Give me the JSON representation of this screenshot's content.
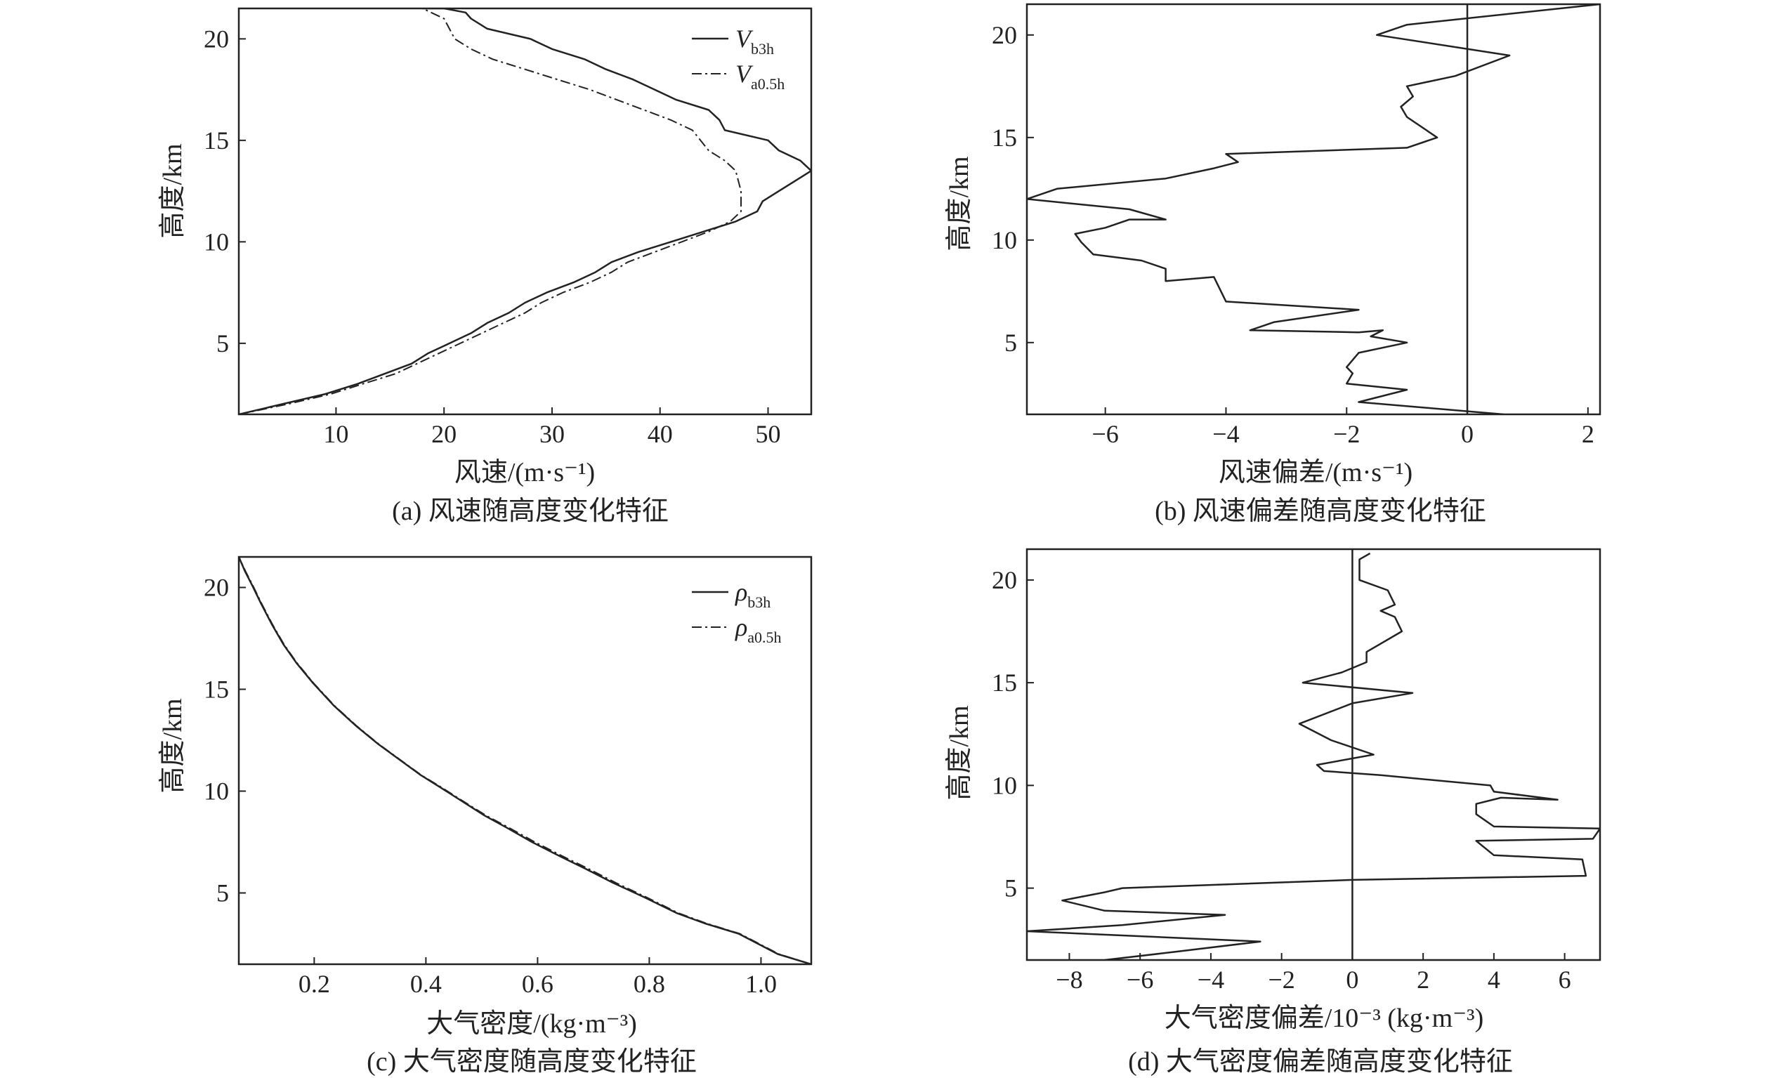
{
  "page": {
    "colors": {
      "ink": "#222222",
      "background": "#ffffff"
    }
  },
  "chart_data": [
    {
      "id": "a",
      "type": "line",
      "caption": "(a) 风速随高度变化特征",
      "xlabel": "风速/(m·s⁻¹)",
      "ylabel": "高度/km",
      "xlim": [
        1,
        54
      ],
      "ylim": [
        1.5,
        21.5
      ],
      "xticks": [
        10,
        20,
        30,
        40,
        50
      ],
      "yticks": [
        5,
        10,
        15,
        20
      ],
      "xtick_labels": [
        "10",
        "20",
        "30",
        "40",
        "50"
      ],
      "ytick_labels": [
        "5",
        "10",
        "15",
        "20"
      ],
      "grid": false,
      "legend": "top-right",
      "zero_line": false,
      "series": [
        {
          "name": "V",
          "sub": "b3h",
          "style": "solid",
          "x": [
            1.0,
            5.0,
            9.0,
            12.0,
            14.5,
            17.0,
            18.5,
            20.5,
            22.5,
            24.0,
            26.0,
            27.5,
            29.5,
            32.0,
            34.0,
            35.5,
            38.0,
            41.0,
            44.0,
            47.0,
            49.0,
            49.5,
            51.0,
            52.5,
            54.0,
            53.0,
            51.0,
            50.0,
            46.0,
            45.5,
            44.5,
            41.5,
            39.5,
            37.5,
            35.0,
            33.0,
            30.0,
            28.0,
            24.0,
            22.5,
            22.0,
            20.0,
            18.0
          ],
          "y": [
            1.5,
            2.0,
            2.5,
            3.0,
            3.5,
            4.0,
            4.5,
            5.0,
            5.5,
            6.0,
            6.5,
            7.0,
            7.5,
            8.0,
            8.5,
            9.0,
            9.5,
            10.0,
            10.5,
            11.0,
            11.5,
            12.0,
            12.5,
            13.0,
            13.5,
            14.0,
            14.5,
            15.0,
            15.5,
            16.0,
            16.5,
            17.0,
            17.5,
            18.0,
            18.5,
            19.0,
            19.5,
            20.0,
            20.5,
            21.0,
            21.3,
            21.5,
            21.5
          ]
        },
        {
          "name": "V",
          "sub": "a0.5h",
          "style": "dashdot",
          "x": [
            1.0,
            5.5,
            9.5,
            12.5,
            15.5,
            17.5,
            19.5,
            21.5,
            23.5,
            25.5,
            27.5,
            29.0,
            31.0,
            33.5,
            35.5,
            37.0,
            39.5,
            42.0,
            44.5,
            46.5,
            47.5,
            47.5,
            47.0,
            46.0,
            44.5,
            43.0,
            41.0,
            38.5,
            36.0,
            33.5,
            30.5,
            27.5,
            24.5,
            22.5,
            21.0,
            20.0,
            18.0
          ],
          "y": [
            1.5,
            2.0,
            2.5,
            3.0,
            3.5,
            4.0,
            4.5,
            5.0,
            5.5,
            6.0,
            6.5,
            7.0,
            7.5,
            8.0,
            8.5,
            9.0,
            9.5,
            10.0,
            10.5,
            11.0,
            11.5,
            12.5,
            13.5,
            14.0,
            14.5,
            15.5,
            16.0,
            16.5,
            17.0,
            17.5,
            18.0,
            18.5,
            19.0,
            19.5,
            20.0,
            21.0,
            21.5
          ]
        }
      ]
    },
    {
      "id": "b",
      "type": "line",
      "caption": "(b) 风速偏差随高度变化特征",
      "xlabel": "风速偏差/(m·s⁻¹)",
      "ylabel": "高度/km",
      "xlim": [
        -7.3,
        2.2
      ],
      "ylim": [
        1.5,
        21.5
      ],
      "xticks": [
        -6,
        -4,
        -2,
        0,
        2
      ],
      "yticks": [
        5,
        10,
        15,
        20
      ],
      "xtick_labels": [
        "−6",
        "−4",
        "−2",
        "0",
        "2"
      ],
      "ytick_labels": [
        "5",
        "10",
        "15",
        "20"
      ],
      "grid": false,
      "legend": "none",
      "zero_line": true,
      "series": [
        {
          "name": "",
          "style": "solid",
          "x": [
            0.6,
            -0.6,
            -1.8,
            -1.0,
            -2.0,
            -1.9,
            -2.0,
            -1.8,
            -1.0,
            -1.6,
            -1.4,
            -1.8,
            -3.6,
            -3.2,
            -1.8,
            -4.0,
            -4.2,
            -5.0,
            -5.0,
            -5.4,
            -6.2,
            -6.4,
            -6.5,
            -6.0,
            -5.6,
            -5.0,
            -5.6,
            -7.3,
            -6.8,
            -5.0,
            -4.2,
            -3.8,
            -4.0,
            -1.0,
            -0.5,
            -1.0,
            -1.1,
            -0.9,
            -1.0,
            -0.2,
            0.7,
            -1.5,
            -1.0,
            2.2
          ],
          "y": [
            1.5,
            1.8,
            2.1,
            2.7,
            3.0,
            3.5,
            3.8,
            4.5,
            5.0,
            5.3,
            5.6,
            5.5,
            5.6,
            6.0,
            6.6,
            7.0,
            8.2,
            8.0,
            8.6,
            9.0,
            9.3,
            9.9,
            10.3,
            10.6,
            11.0,
            11.0,
            11.5,
            12.0,
            12.5,
            13.0,
            13.5,
            13.8,
            14.2,
            14.5,
            15.0,
            16.0,
            16.5,
            17.0,
            17.5,
            18.0,
            19.0,
            20.0,
            20.5,
            21.5
          ]
        }
      ]
    },
    {
      "id": "c",
      "type": "line",
      "caption": "(c) 大气密度随高度变化特征",
      "xlabel": "大气密度/(kg·m⁻³)",
      "ylabel": "高度/km",
      "xlim": [
        0.065,
        1.09
      ],
      "ylim": [
        1.5,
        21.5
      ],
      "xticks": [
        0.2,
        0.4,
        0.6,
        0.8,
        1.0
      ],
      "yticks": [
        5,
        10,
        15,
        20
      ],
      "xtick_labels": [
        "0.2",
        "0.4",
        "0.6",
        "0.8",
        "1.0"
      ],
      "ytick_labels": [
        "5",
        "10",
        "15",
        "20"
      ],
      "grid": false,
      "legend": "top-right",
      "zero_line": false,
      "series": [
        {
          "name": "ρ",
          "sub": "b3h",
          "style": "solid",
          "x": [
            1.09,
            1.03,
            0.96,
            0.9,
            0.85,
            0.79,
            0.735,
            0.685,
            0.64,
            0.59,
            0.545,
            0.505,
            0.465,
            0.425,
            0.39,
            0.355,
            0.315,
            0.275,
            0.235,
            0.198,
            0.168,
            0.145,
            0.124,
            0.105,
            0.089,
            0.076,
            0.065
          ],
          "y": [
            1.5,
            2.0,
            3.0,
            3.5,
            4.0,
            4.8,
            5.5,
            6.2,
            6.8,
            7.5,
            8.2,
            8.8,
            9.5,
            10.2,
            10.8,
            11.5,
            12.3,
            13.2,
            14.2,
            15.3,
            16.3,
            17.2,
            18.2,
            19.2,
            20.1,
            20.8,
            21.5
          ]
        },
        {
          "name": "ρ",
          "sub": "a0.5h",
          "style": "dashdot",
          "x": [
            1.09,
            1.032,
            0.962,
            0.903,
            0.853,
            0.794,
            0.74,
            0.69,
            0.645,
            0.595,
            0.549,
            0.508,
            0.467,
            0.427,
            0.391,
            0.356,
            0.316,
            0.276,
            0.236,
            0.199,
            0.169,
            0.146,
            0.125,
            0.106,
            0.09,
            0.077,
            0.065
          ],
          "y": [
            1.5,
            2.0,
            3.0,
            3.5,
            4.0,
            4.8,
            5.5,
            6.2,
            6.8,
            7.5,
            8.2,
            8.8,
            9.5,
            10.2,
            10.8,
            11.5,
            12.3,
            13.2,
            14.2,
            15.3,
            16.3,
            17.2,
            18.2,
            19.2,
            20.1,
            20.8,
            21.5
          ]
        }
      ]
    },
    {
      "id": "d",
      "type": "line",
      "caption": "(d) 大气密度偏差随高度变化特征",
      "xlabel": "大气密度偏差/10⁻³ (kg·m⁻³)",
      "ylabel": "高度/km",
      "xlim": [
        -9.2,
        7.0
      ],
      "ylim": [
        1.5,
        21.5
      ],
      "xticks": [
        -8,
        -6,
        -4,
        -2,
        0,
        2,
        4,
        6
      ],
      "yticks": [
        5,
        10,
        15,
        20
      ],
      "xtick_labels": [
        "−8",
        "−6",
        "−4",
        "−2",
        "0",
        "2",
        "4",
        "6"
      ],
      "ytick_labels": [
        "5",
        "10",
        "15",
        "20"
      ],
      "grid": false,
      "legend": "none",
      "zero_line": true,
      "series": [
        {
          "name": "",
          "style": "solid",
          "x": [
            -7.0,
            -5.0,
            -2.6,
            -9.2,
            -6.5,
            -3.6,
            -7.0,
            -8.2,
            -7.0,
            -6.5,
            0.0,
            6.6,
            6.5,
            4.0,
            3.5,
            6.8,
            7.0,
            4.0,
            3.5,
            3.5,
            4.2,
            5.8,
            4.0,
            3.9,
            0.8,
            -0.8,
            -1.0,
            0.6,
            -0.6,
            -1.5,
            0.0,
            1.7,
            -1.4,
            -0.3,
            0.4,
            0.4,
            1.4,
            1.2,
            0.8,
            1.2,
            1.0,
            0.2,
            0.2,
            0.5
          ],
          "y": [
            1.5,
            1.9,
            2.4,
            2.9,
            3.2,
            3.7,
            3.9,
            4.4,
            4.8,
            5.0,
            5.4,
            5.6,
            6.4,
            6.6,
            7.3,
            7.4,
            7.9,
            8.0,
            8.6,
            9.1,
            9.4,
            9.3,
            9.7,
            10.0,
            10.5,
            10.7,
            11.0,
            11.5,
            12.2,
            13.0,
            14.0,
            14.5,
            15.0,
            15.5,
            16.0,
            16.5,
            17.5,
            18.2,
            18.5,
            18.8,
            19.5,
            20.0,
            21.0,
            21.3
          ]
        }
      ]
    }
  ]
}
